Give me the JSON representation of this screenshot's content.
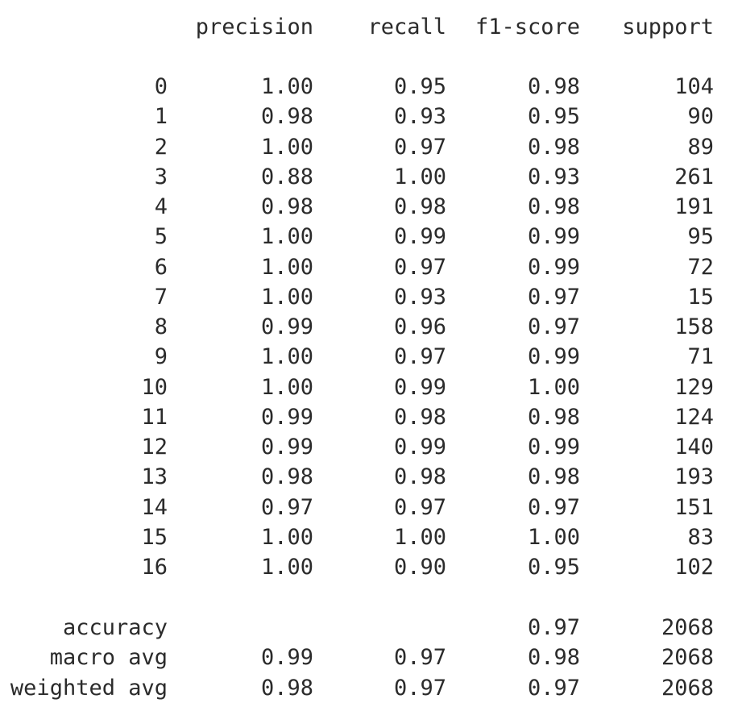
{
  "report": {
    "header": {
      "precision": "precision",
      "recall": "recall",
      "f1": "f1-score",
      "support": "support"
    },
    "classes": [
      {
        "label": "0",
        "precision": "1.00",
        "recall": "0.95",
        "f1": "0.98",
        "support": "104"
      },
      {
        "label": "1",
        "precision": "0.98",
        "recall": "0.93",
        "f1": "0.95",
        "support": "90"
      },
      {
        "label": "2",
        "precision": "1.00",
        "recall": "0.97",
        "f1": "0.98",
        "support": "89"
      },
      {
        "label": "3",
        "precision": "0.88",
        "recall": "1.00",
        "f1": "0.93",
        "support": "261"
      },
      {
        "label": "4",
        "precision": "0.98",
        "recall": "0.98",
        "f1": "0.98",
        "support": "191"
      },
      {
        "label": "5",
        "precision": "1.00",
        "recall": "0.99",
        "f1": "0.99",
        "support": "95"
      },
      {
        "label": "6",
        "precision": "1.00",
        "recall": "0.97",
        "f1": "0.99",
        "support": "72"
      },
      {
        "label": "7",
        "precision": "1.00",
        "recall": "0.93",
        "f1": "0.97",
        "support": "15"
      },
      {
        "label": "8",
        "precision": "0.99",
        "recall": "0.96",
        "f1": "0.97",
        "support": "158"
      },
      {
        "label": "9",
        "precision": "1.00",
        "recall": "0.97",
        "f1": "0.99",
        "support": "71"
      },
      {
        "label": "10",
        "precision": "1.00",
        "recall": "0.99",
        "f1": "1.00",
        "support": "129"
      },
      {
        "label": "11",
        "precision": "0.99",
        "recall": "0.98",
        "f1": "0.98",
        "support": "124"
      },
      {
        "label": "12",
        "precision": "0.99",
        "recall": "0.99",
        "f1": "0.99",
        "support": "140"
      },
      {
        "label": "13",
        "precision": "0.98",
        "recall": "0.98",
        "f1": "0.98",
        "support": "193"
      },
      {
        "label": "14",
        "precision": "0.97",
        "recall": "0.97",
        "f1": "0.97",
        "support": "151"
      },
      {
        "label": "15",
        "precision": "1.00",
        "recall": "1.00",
        "f1": "1.00",
        "support": "83"
      },
      {
        "label": "16",
        "precision": "1.00",
        "recall": "0.90",
        "f1": "0.95",
        "support": "102"
      }
    ],
    "summary": [
      {
        "label": "accuracy",
        "precision": "",
        "recall": "",
        "f1": "0.97",
        "support": "2068"
      },
      {
        "label": "macro avg",
        "precision": "0.99",
        "recall": "0.97",
        "f1": "0.98",
        "support": "2068"
      },
      {
        "label": "weighted avg",
        "precision": "0.98",
        "recall": "0.97",
        "f1": "0.97",
        "support": "2068"
      }
    ]
  }
}
